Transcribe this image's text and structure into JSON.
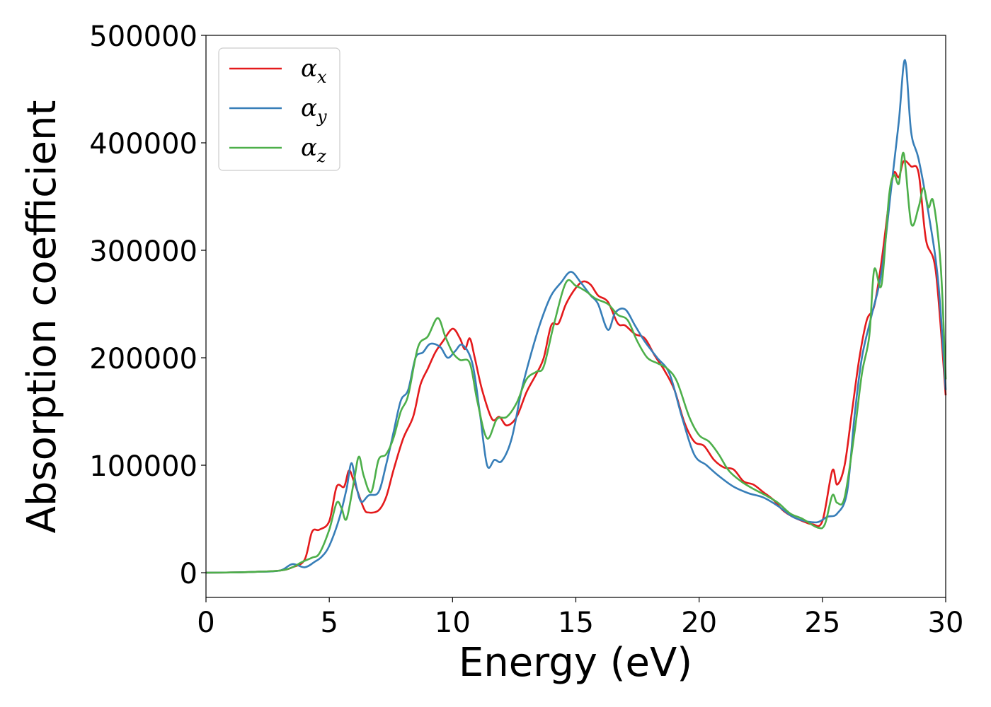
{
  "chart_data": {
    "type": "line",
    "title": "",
    "xlabel": "Energy (eV)",
    "ylabel": "Absorption coefficient",
    "xlim": [
      0,
      30
    ],
    "ylim": [
      -23000,
      500000
    ],
    "xticks": [
      0,
      5,
      10,
      15,
      20,
      25,
      30
    ],
    "yticks": [
      0,
      100000,
      200000,
      300000,
      400000,
      500000
    ],
    "grid": false,
    "legend_position": "top-left",
    "series": [
      {
        "name": "α_x",
        "base": "α",
        "sub": "x",
        "color": "#e41a1c",
        "points": [
          [
            0,
            0
          ],
          [
            1,
            200
          ],
          [
            2,
            800
          ],
          [
            3,
            2000
          ],
          [
            3.5,
            5000
          ],
          [
            4,
            12000
          ],
          [
            4.3,
            38000
          ],
          [
            4.6,
            40000
          ],
          [
            5,
            48000
          ],
          [
            5.3,
            80000
          ],
          [
            5.6,
            80000
          ],
          [
            5.8,
            95000
          ],
          [
            6,
            85000
          ],
          [
            6.4,
            60000
          ],
          [
            6.6,
            56000
          ],
          [
            7,
            58000
          ],
          [
            7.3,
            70000
          ],
          [
            7.6,
            95000
          ],
          [
            8,
            125000
          ],
          [
            8.4,
            145000
          ],
          [
            8.7,
            175000
          ],
          [
            9,
            190000
          ],
          [
            9.3,
            205000
          ],
          [
            9.6,
            215000
          ],
          [
            10,
            227000
          ],
          [
            10.3,
            218000
          ],
          [
            10.5,
            208000
          ],
          [
            10.7,
            218000
          ],
          [
            10.9,
            200000
          ],
          [
            11.2,
            170000
          ],
          [
            11.6,
            143000
          ],
          [
            11.9,
            145000
          ],
          [
            12.2,
            137000
          ],
          [
            12.6,
            145000
          ],
          [
            13,
            168000
          ],
          [
            13.4,
            185000
          ],
          [
            13.7,
            200000
          ],
          [
            14,
            230000
          ],
          [
            14.3,
            232000
          ],
          [
            14.6,
            250000
          ],
          [
            15,
            265000
          ],
          [
            15.3,
            271000
          ],
          [
            15.6,
            268000
          ],
          [
            15.9,
            258000
          ],
          [
            16.3,
            252000
          ],
          [
            16.7,
            232000
          ],
          [
            17,
            230000
          ],
          [
            17.4,
            222000
          ],
          [
            17.8,
            218000
          ],
          [
            18.2,
            202000
          ],
          [
            18.6,
            188000
          ],
          [
            19,
            170000
          ],
          [
            19.4,
            140000
          ],
          [
            19.8,
            122000
          ],
          [
            20.2,
            118000
          ],
          [
            20.6,
            105000
          ],
          [
            21,
            98000
          ],
          [
            21.4,
            96000
          ],
          [
            21.8,
            85000
          ],
          [
            22.2,
            82000
          ],
          [
            22.6,
            75000
          ],
          [
            23,
            68000
          ],
          [
            23.4,
            58000
          ],
          [
            23.8,
            52000
          ],
          [
            24.2,
            48000
          ],
          [
            24.6,
            45000
          ],
          [
            25,
            48000
          ],
          [
            25.4,
            95000
          ],
          [
            25.6,
            82000
          ],
          [
            25.9,
            100000
          ],
          [
            26.2,
            150000
          ],
          [
            26.5,
            200000
          ],
          [
            26.8,
            235000
          ],
          [
            27.1,
            248000
          ],
          [
            27.4,
            290000
          ],
          [
            27.7,
            345000
          ],
          [
            27.9,
            372000
          ],
          [
            28.1,
            368000
          ],
          [
            28.3,
            383000
          ],
          [
            28.6,
            378000
          ],
          [
            28.9,
            372000
          ],
          [
            29.2,
            310000
          ],
          [
            29.6,
            280000
          ],
          [
            30,
            165000
          ]
        ]
      },
      {
        "name": "α_y",
        "base": "α",
        "sub": "y",
        "color": "#377eb8",
        "points": [
          [
            0,
            0
          ],
          [
            1,
            200
          ],
          [
            2,
            800
          ],
          [
            3,
            2000
          ],
          [
            3.5,
            8000
          ],
          [
            4,
            5000
          ],
          [
            4.4,
            10000
          ],
          [
            4.7,
            15000
          ],
          [
            5,
            25000
          ],
          [
            5.4,
            50000
          ],
          [
            5.7,
            78000
          ],
          [
            5.9,
            102000
          ],
          [
            6.1,
            80000
          ],
          [
            6.3,
            66000
          ],
          [
            6.6,
            72000
          ],
          [
            7,
            75000
          ],
          [
            7.3,
            100000
          ],
          [
            7.6,
            130000
          ],
          [
            7.9,
            160000
          ],
          [
            8.2,
            170000
          ],
          [
            8.5,
            200000
          ],
          [
            8.8,
            205000
          ],
          [
            9.1,
            213000
          ],
          [
            9.5,
            210000
          ],
          [
            9.8,
            200000
          ],
          [
            10.1,
            206000
          ],
          [
            10.4,
            212000
          ],
          [
            10.8,
            195000
          ],
          [
            11.1,
            150000
          ],
          [
            11.4,
            100000
          ],
          [
            11.7,
            105000
          ],
          [
            12,
            104000
          ],
          [
            12.4,
            125000
          ],
          [
            12.8,
            170000
          ],
          [
            13.2,
            205000
          ],
          [
            13.6,
            235000
          ],
          [
            14,
            258000
          ],
          [
            14.4,
            270000
          ],
          [
            14.8,
            280000
          ],
          [
            15.2,
            270000
          ],
          [
            15.6,
            258000
          ],
          [
            15.9,
            250000
          ],
          [
            16.3,
            226000
          ],
          [
            16.6,
            242000
          ],
          [
            17,
            245000
          ],
          [
            17.4,
            230000
          ],
          [
            17.8,
            215000
          ],
          [
            18.3,
            200000
          ],
          [
            18.8,
            185000
          ],
          [
            19.3,
            145000
          ],
          [
            19.8,
            110000
          ],
          [
            20.3,
            100000
          ],
          [
            20.8,
            90000
          ],
          [
            21.4,
            80000
          ],
          [
            22,
            74000
          ],
          [
            22.6,
            70000
          ],
          [
            23.2,
            62000
          ],
          [
            23.8,
            52000
          ],
          [
            24.3,
            48000
          ],
          [
            24.8,
            47000
          ],
          [
            25.2,
            52000
          ],
          [
            25.6,
            55000
          ],
          [
            26,
            75000
          ],
          [
            26.3,
            145000
          ],
          [
            26.6,
            200000
          ],
          [
            27,
            240000
          ],
          [
            27.4,
            280000
          ],
          [
            27.8,
            360000
          ],
          [
            28.1,
            420000
          ],
          [
            28.35,
            477000
          ],
          [
            28.6,
            410000
          ],
          [
            28.9,
            385000
          ],
          [
            29.3,
            335000
          ],
          [
            29.7,
            270000
          ],
          [
            30,
            170000
          ]
        ]
      },
      {
        "name": "α_z",
        "base": "α",
        "sub": "z",
        "color": "#4daf4a",
        "points": [
          [
            0,
            0
          ],
          [
            1,
            200
          ],
          [
            2,
            800
          ],
          [
            3,
            2000
          ],
          [
            3.5,
            5000
          ],
          [
            3.9,
            10000
          ],
          [
            4.3,
            14000
          ],
          [
            4.6,
            18000
          ],
          [
            5,
            40000
          ],
          [
            5.3,
            65000
          ],
          [
            5.5,
            60000
          ],
          [
            5.7,
            50000
          ],
          [
            6,
            85000
          ],
          [
            6.2,
            108000
          ],
          [
            6.4,
            90000
          ],
          [
            6.7,
            75000
          ],
          [
            7,
            105000
          ],
          [
            7.3,
            110000
          ],
          [
            7.6,
            125000
          ],
          [
            7.9,
            150000
          ],
          [
            8.2,
            165000
          ],
          [
            8.6,
            210000
          ],
          [
            9,
            220000
          ],
          [
            9.4,
            237000
          ],
          [
            9.7,
            220000
          ],
          [
            10,
            205000
          ],
          [
            10.3,
            198000
          ],
          [
            10.7,
            195000
          ],
          [
            11,
            160000
          ],
          [
            11.4,
            125000
          ],
          [
            11.8,
            143000
          ],
          [
            12.2,
            145000
          ],
          [
            12.6,
            158000
          ],
          [
            13,
            180000
          ],
          [
            13.4,
            187000
          ],
          [
            13.7,
            192000
          ],
          [
            14.1,
            230000
          ],
          [
            14.6,
            270000
          ],
          [
            15,
            267000
          ],
          [
            15.4,
            262000
          ],
          [
            15.8,
            255000
          ],
          [
            16.3,
            250000
          ],
          [
            16.7,
            240000
          ],
          [
            17.1,
            235000
          ],
          [
            17.5,
            215000
          ],
          [
            17.9,
            200000
          ],
          [
            18.3,
            195000
          ],
          [
            18.7,
            190000
          ],
          [
            19.1,
            178000
          ],
          [
            19.6,
            145000
          ],
          [
            20,
            128000
          ],
          [
            20.4,
            122000
          ],
          [
            20.8,
            110000
          ],
          [
            21.2,
            95000
          ],
          [
            21.7,
            85000
          ],
          [
            22.2,
            78000
          ],
          [
            22.7,
            72000
          ],
          [
            23.2,
            65000
          ],
          [
            23.7,
            55000
          ],
          [
            24.2,
            50000
          ],
          [
            24.8,
            42000
          ],
          [
            25.1,
            45000
          ],
          [
            25.4,
            72000
          ],
          [
            25.6,
            65000
          ],
          [
            25.9,
            70000
          ],
          [
            26.3,
            130000
          ],
          [
            26.6,
            185000
          ],
          [
            26.9,
            220000
          ],
          [
            27.1,
            282000
          ],
          [
            27.4,
            268000
          ],
          [
            27.7,
            350000
          ],
          [
            27.9,
            370000
          ],
          [
            28.1,
            362000
          ],
          [
            28.3,
            390000
          ],
          [
            28.6,
            325000
          ],
          [
            28.9,
            340000
          ],
          [
            29.1,
            358000
          ],
          [
            29.3,
            340000
          ],
          [
            29.5,
            345000
          ],
          [
            29.8,
            285000
          ],
          [
            30,
            180000
          ]
        ]
      }
    ]
  }
}
